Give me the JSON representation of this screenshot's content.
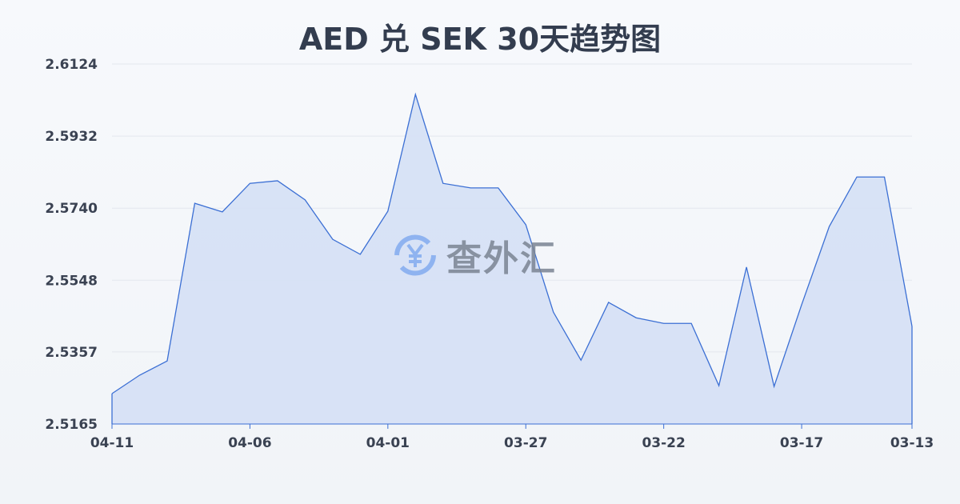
{
  "chart_data": {
    "type": "area",
    "title": "AED 兑 SEK 30天趋势图",
    "xlabel": "",
    "ylabel": "",
    "x": [
      "04-11",
      "04-10",
      "04-09",
      "04-08",
      "04-07",
      "04-06",
      "04-05",
      "04-04",
      "04-03",
      "04-02",
      "04-01",
      "03-31",
      "03-30",
      "03-29",
      "03-28",
      "03-27",
      "03-26",
      "03-25",
      "03-24",
      "03-23",
      "03-22",
      "03-21",
      "03-20",
      "03-19",
      "03-18",
      "03-17",
      "03-16",
      "03-15",
      "03-14",
      "03-13"
    ],
    "values": [
      2.5246,
      2.5295,
      2.5333,
      2.5753,
      2.573,
      2.5806,
      2.5813,
      2.5762,
      2.5657,
      2.5617,
      2.5732,
      2.6043,
      2.5806,
      2.5794,
      2.5794,
      2.5696,
      2.5463,
      2.5335,
      2.5489,
      2.5448,
      2.5433,
      2.5433,
      2.5267,
      2.5583,
      2.5265,
      2.5483,
      2.5691,
      2.5823,
      2.5823,
      2.5425
    ],
    "x_tick_labels": [
      "04-11",
      "04-06",
      "04-01",
      "03-27",
      "03-22",
      "03-17",
      "03-13"
    ],
    "y_tick_labels": [
      "2.6124",
      "2.5932",
      "2.5740",
      "2.5548",
      "2.5357",
      "2.5165"
    ],
    "ylim": [
      2.5165,
      2.6124
    ],
    "grid": true,
    "colors": {
      "line": "#3b6fd4",
      "fill": "#d5e0f5",
      "grid": "#e3e7ee"
    }
  },
  "watermark": {
    "text": "查外汇",
    "icon": "yen-exchange-icon"
  }
}
